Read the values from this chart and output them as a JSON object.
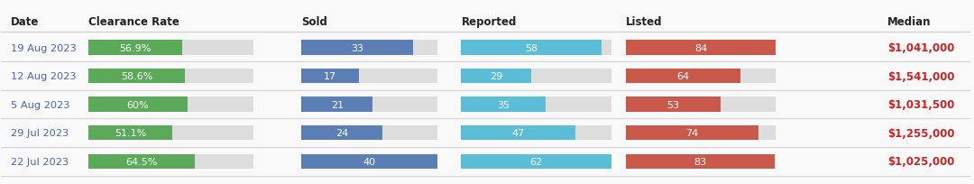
{
  "headers": [
    "Date",
    "Clearance Rate",
    "Sold",
    "Reported",
    "Listed",
    "Median"
  ],
  "rows": [
    {
      "date": "19 Aug 2023",
      "clearance": 56.9,
      "sold": 33,
      "reported": 58,
      "listed": 84,
      "median": "$1,041,000"
    },
    {
      "date": "12 Aug 2023",
      "clearance": 58.6,
      "sold": 17,
      "reported": 29,
      "listed": 64,
      "median": "$1,541,000"
    },
    {
      "date": "5 Aug 2023",
      "clearance": 60.0,
      "sold": 21,
      "reported": 35,
      "listed": 53,
      "median": "$1,031,500"
    },
    {
      "date": "29 Jul 2023",
      "clearance": 51.1,
      "sold": 24,
      "reported": 47,
      "listed": 74,
      "median": "$1,255,000"
    },
    {
      "date": "22 Jul 2023",
      "clearance": 64.5,
      "sold": 40,
      "reported": 62,
      "listed": 83,
      "median": "$1,025,000"
    }
  ],
  "max_sold": 40,
  "max_reported": 62,
  "max_listed": 84,
  "color_green": "#5aaa5a",
  "color_blue_dark": "#5b7eb5",
  "color_blue_light": "#5bbdd6",
  "color_red": "#c9594a",
  "color_bg_bar": "#dddddd",
  "color_date": "#4466bb",
  "color_median": "#cc2222",
  "color_header": "#222222",
  "color_bg": "#f9f9f9",
  "color_separator": "#cccccc",
  "col_x": {
    "date": 0.01,
    "clearance": 0.09,
    "sold": 0.31,
    "reported": 0.475,
    "listed": 0.645,
    "median": 0.915
  },
  "bar_widths": {
    "clearance": 0.17,
    "sold": 0.14,
    "reported": 0.155,
    "listed": 0.155
  }
}
